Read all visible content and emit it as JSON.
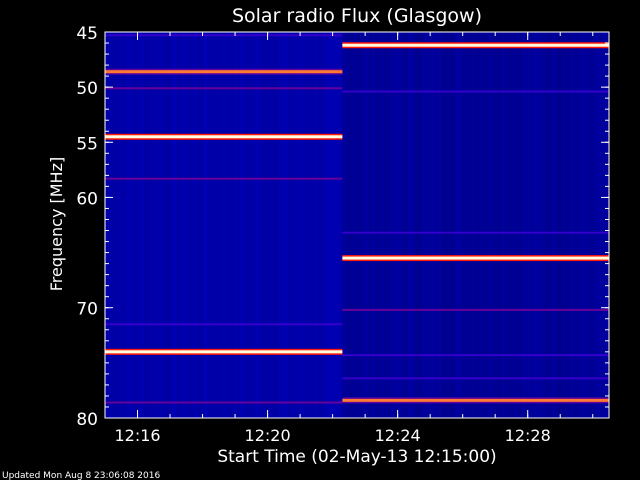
{
  "chart_data": {
    "type": "heatmap",
    "title": "Solar radio Flux (Glasgow)",
    "xlabel": "Start Time (02-May-13 12:15:00)",
    "ylabel": "Frequency [MHz]",
    "footer": "Updated Mon Aug  8 23:06:08 2016",
    "x_tick_labels": [
      "12:16",
      "12:20",
      "12:24",
      "12:28"
    ],
    "x_ticks_minutes": [
      1,
      5,
      9,
      13
    ],
    "y_tick_labels": [
      "45",
      "50",
      "55",
      "60",
      "70",
      "80"
    ],
    "y_ticks_mhz": [
      45,
      50,
      55,
      60,
      70,
      80
    ],
    "xlim_minutes": [
      0,
      15.5
    ],
    "ylim_mhz": [
      45,
      80
    ],
    "segment_split_minutes": 7.3,
    "colormap": [
      "#00008c",
      "#0000ff",
      "#ff0000",
      "#ffff66",
      "#ffffff"
    ],
    "background_color": "#000000",
    "band_left_color": "#0000a0",
    "band_right_color": "#000085",
    "emission_lines": [
      {
        "segment": "left",
        "freq_mhz": 48.6,
        "intensity": 0.62
      },
      {
        "segment": "left",
        "freq_mhz": 54.5,
        "intensity": 0.95
      },
      {
        "segment": "left",
        "freq_mhz": 74.0,
        "intensity": 0.95
      },
      {
        "segment": "right",
        "freq_mhz": 46.2,
        "intensity": 0.95
      },
      {
        "segment": "right",
        "freq_mhz": 65.5,
        "intensity": 0.95
      },
      {
        "segment": "right",
        "freq_mhz": 78.4,
        "intensity": 0.62
      }
    ],
    "minor_lines": [
      {
        "segment": "left",
        "freq_mhz": 45.3,
        "intensity": 0.3
      },
      {
        "segment": "left",
        "freq_mhz": 50.1,
        "intensity": 0.35
      },
      {
        "segment": "left",
        "freq_mhz": 58.3,
        "intensity": 0.35
      },
      {
        "segment": "left",
        "freq_mhz": 71.5,
        "intensity": 0.3
      },
      {
        "segment": "left",
        "freq_mhz": 78.6,
        "intensity": 0.35
      },
      {
        "segment": "right",
        "freq_mhz": 50.4,
        "intensity": 0.3
      },
      {
        "segment": "right",
        "freq_mhz": 63.2,
        "intensity": 0.3
      },
      {
        "segment": "right",
        "freq_mhz": 70.2,
        "intensity": 0.35
      },
      {
        "segment": "right",
        "freq_mhz": 74.3,
        "intensity": 0.3
      },
      {
        "segment": "right",
        "freq_mhz": 76.4,
        "intensity": 0.3
      }
    ]
  }
}
